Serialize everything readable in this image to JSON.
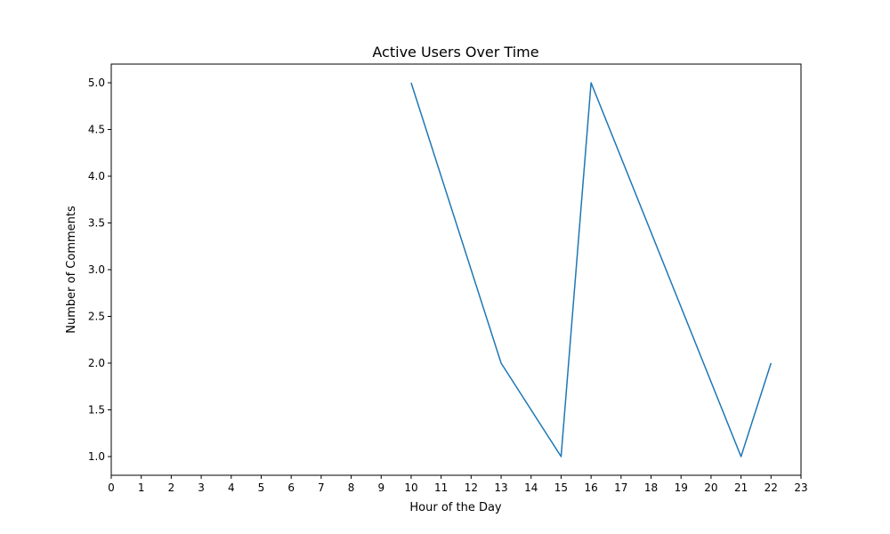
{
  "chart_data": {
    "type": "line",
    "title": "Active Users Over Time",
    "xlabel": "Hour of the Day",
    "ylabel": "Number of Comments",
    "x_ticks": [
      0,
      1,
      2,
      3,
      4,
      5,
      6,
      7,
      8,
      9,
      10,
      11,
      12,
      13,
      14,
      15,
      16,
      17,
      18,
      19,
      20,
      21,
      22,
      23
    ],
    "y_ticks": [
      1.0,
      1.5,
      2.0,
      2.5,
      3.0,
      3.5,
      4.0,
      4.5,
      5.0
    ],
    "y_tick_labels": [
      "1.0",
      "1.5",
      "2.0",
      "2.5",
      "3.0",
      "3.5",
      "4.0",
      "4.5",
      "5.0"
    ],
    "xlim": [
      0,
      23
    ],
    "ylim": [
      0.8,
      5.2
    ],
    "grid": false,
    "series": [
      {
        "x": [
          10,
          13,
          15,
          16,
          21,
          22
        ],
        "values": [
          5,
          2,
          1,
          5,
          1,
          2
        ],
        "color": "#1f77b4"
      }
    ]
  }
}
